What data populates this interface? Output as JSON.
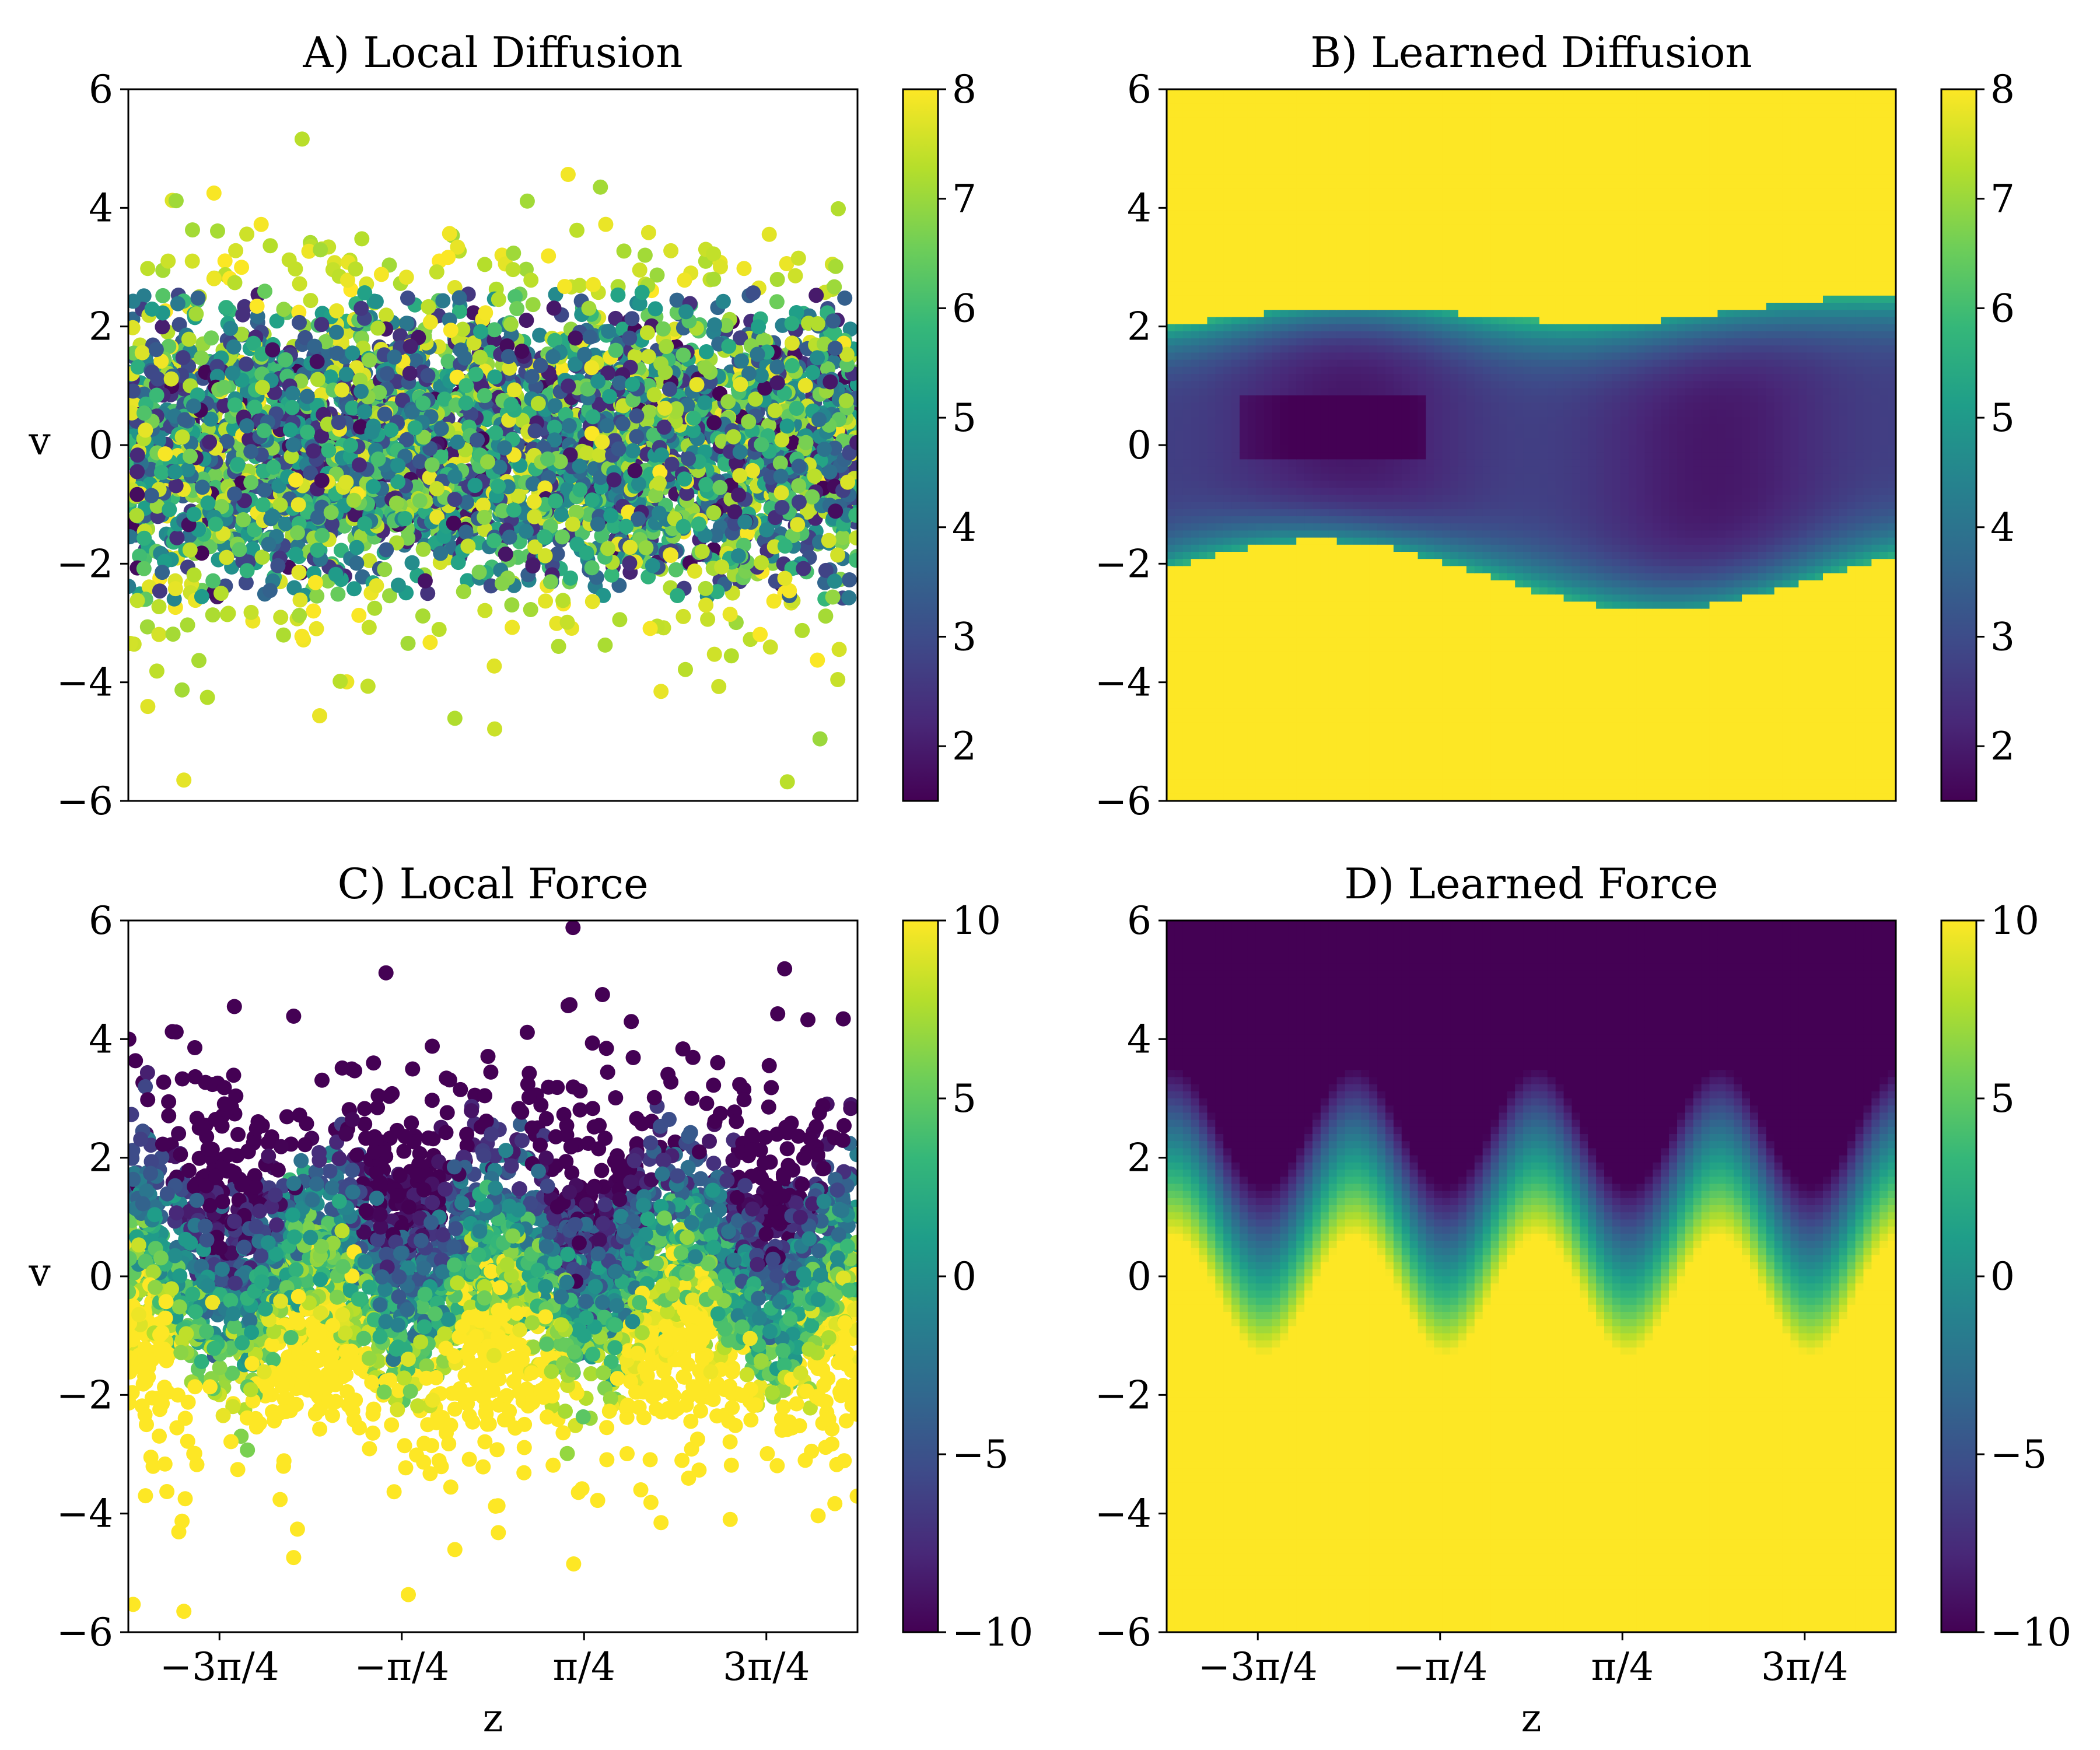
{
  "colormap": [
    "#440154",
    "#482878",
    "#3e4a89",
    "#31688e",
    "#26828e",
    "#1f9e89",
    "#35b779",
    "#6ece58",
    "#b5de2b",
    "#fde725"
  ],
  "chart_data": [
    {
      "id": "A",
      "type": "scatter",
      "title": "A) Local Diffusion",
      "xlabel": "",
      "ylabel": "v",
      "xlim": [
        -3.14159,
        3.14159
      ],
      "ylim": [
        -6,
        6
      ],
      "yticks": [
        6,
        4,
        2,
        0,
        -2,
        -4,
        -6
      ],
      "ytick_labels": [
        "6",
        "4",
        "2",
        "0",
        "−2",
        "−4",
        "−6"
      ],
      "xticks": [],
      "xtick_labels": [],
      "color_field": "diffusion",
      "colorbar": {
        "vmin": 1.5,
        "vmax": 8,
        "ticks": [
          8,
          7,
          6,
          5,
          4,
          3,
          2
        ],
        "tick_labels": [
          "8",
          "7",
          "6",
          "5",
          "4",
          "3",
          "2"
        ]
      },
      "point_count": 4200,
      "description_values": {
        "v_spread": 1.5
      }
    },
    {
      "id": "B",
      "type": "heatmap",
      "title": "B) Learned Diffusion",
      "xlabel": "",
      "ylabel": "",
      "xlim": [
        -3.14159,
        3.14159
      ],
      "ylim": [
        -6,
        6
      ],
      "yticks": [
        6,
        4,
        2,
        0,
        -2,
        -4,
        -6
      ],
      "ytick_labels": [
        "6",
        "4",
        "2",
        "0",
        "−2",
        "−4",
        "−6"
      ],
      "xticks": [],
      "xtick_labels": [],
      "color_field": "diffusion",
      "colorbar": {
        "vmin": 1.5,
        "vmax": 8,
        "ticks": [
          8,
          7,
          6,
          5,
          4,
          3,
          2
        ],
        "tick_labels": [
          "8",
          "7",
          "6",
          "5",
          "4",
          "3",
          "2"
        ]
      },
      "band_half_width": 2.2,
      "background_value": 8
    },
    {
      "id": "C",
      "type": "scatter",
      "title": "C) Local Force",
      "xlabel": "z",
      "ylabel": "v",
      "xlim": [
        -3.14159,
        3.14159
      ],
      "ylim": [
        -6,
        6
      ],
      "yticks": [
        6,
        4,
        2,
        0,
        -2,
        -4,
        -6
      ],
      "ytick_labels": [
        "6",
        "4",
        "2",
        "0",
        "−2",
        "−4",
        "−6"
      ],
      "xticks": [
        -2.35619,
        -0.785398,
        0.785398,
        2.35619
      ],
      "xtick_labels": [
        "−3π/4",
        "−π/4",
        "π/4",
        "3π/4"
      ],
      "color_field": "force",
      "colorbar": {
        "vmin": -10,
        "vmax": 10,
        "ticks": [
          10,
          5,
          0,
          -5,
          -10
        ],
        "tick_labels": [
          "10",
          "5",
          "0",
          "−5",
          "−10"
        ]
      },
      "point_count": 4200
    },
    {
      "id": "D",
      "type": "heatmap",
      "title": "D) Learned Force",
      "xlabel": "z",
      "ylabel": "",
      "xlim": [
        -3.14159,
        3.14159
      ],
      "ylim": [
        -6,
        6
      ],
      "yticks": [
        6,
        4,
        2,
        0,
        -2,
        -4,
        -6
      ],
      "ytick_labels": [
        "6",
        "4",
        "2",
        "0",
        "−2",
        "−4",
        "−6"
      ],
      "xticks": [
        -2.35619,
        -0.785398,
        0.785398,
        2.35619
      ],
      "xtick_labels": [
        "−3π/4",
        "−π/4",
        "π/4",
        "3π/4"
      ],
      "color_field": "force",
      "colorbar": {
        "vmin": -10,
        "vmax": 10,
        "ticks": [
          10,
          5,
          0,
          -5,
          -10
        ],
        "tick_labels": [
          "10",
          "5",
          "0",
          "−5",
          "−10"
        ]
      },
      "wave_amplitude": 2.0,
      "wave_periods": 4
    }
  ]
}
